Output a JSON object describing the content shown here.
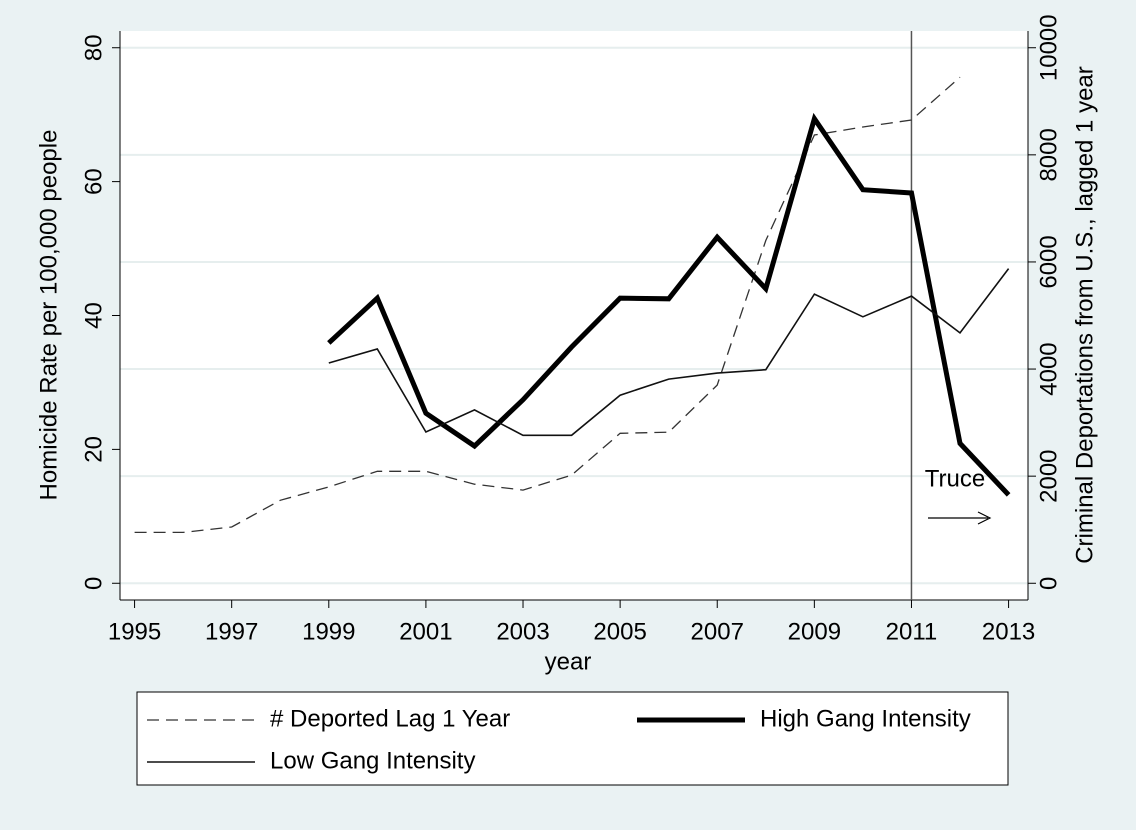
{
  "chart_data": {
    "type": "line",
    "x": [
      1995,
      1996,
      1997,
      1998,
      1999,
      2000,
      2001,
      2002,
      2003,
      2004,
      2005,
      2006,
      2007,
      2008,
      2009,
      2010,
      2011,
      2012,
      2013
    ],
    "xlim": [
      1994.7,
      2013.4
    ],
    "xticks": [
      1995,
      1997,
      1999,
      2001,
      2003,
      2005,
      2007,
      2009,
      2011,
      2013
    ],
    "xlabel": "year",
    "ylabel": "Homicide Rate per 100,000 people",
    "ylim": [
      -2.5,
      82.5
    ],
    "yticks": [
      0,
      20,
      40,
      60,
      80
    ],
    "y2label": "Criminal Deportations from U.S., lagged 1 year",
    "y2lim": [
      -312.5,
      10312.5
    ],
    "y2ticks": [
      0,
      2000,
      4000,
      6000,
      8000,
      10000
    ],
    "grid": true,
    "vline": 2011,
    "annotation": "Truce",
    "series": [
      {
        "name": "# Deported Lag 1 Year",
        "color": "#333333",
        "axis": "y2",
        "dashed": true,
        "line_width": 1.3,
        "values": [
          950,
          950,
          1050,
          1550,
          1800,
          2090,
          2090,
          1850,
          1740,
          2020,
          2800,
          2820,
          3700,
          6400,
          8370,
          8520,
          8650,
          9450,
          null
        ]
      },
      {
        "name": "High Gang Intensity",
        "color": "#000000",
        "dashed": false,
        "line_width": 5,
        "values": [
          null,
          null,
          null,
          null,
          35.9,
          42.6,
          25.4,
          20.5,
          27.4,
          35.3,
          42.6,
          42.5,
          51.7,
          44.0,
          69.4,
          58.8,
          58.3,
          20.9,
          13.2
        ]
      },
      {
        "name": "Low Gang Intensity",
        "color": "#111111",
        "dashed": false,
        "line_width": 1.6,
        "values": [
          null,
          null,
          null,
          null,
          32.9,
          35.0,
          22.6,
          25.9,
          22.1,
          22.1,
          28.1,
          30.5,
          31.4,
          31.9,
          43.2,
          39.8,
          42.9,
          37.4,
          47.0
        ]
      }
    ]
  }
}
